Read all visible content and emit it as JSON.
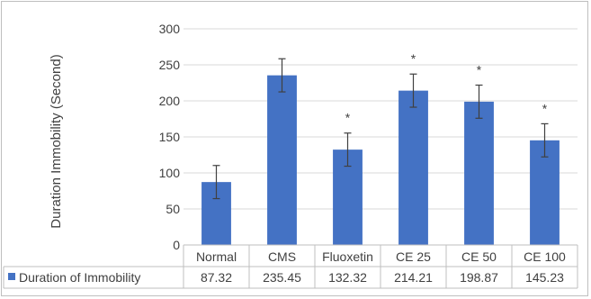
{
  "chart_data": {
    "type": "bar",
    "title": "",
    "xlabel": "",
    "ylabel": "Duration Immobility (Second)",
    "ylim": [
      0,
      300
    ],
    "yticks": [
      0,
      50,
      100,
      150,
      200,
      250,
      300
    ],
    "grid": true,
    "legend": "data-table",
    "categories": [
      "Normal",
      "CMS",
      "Fluoxetin",
      "CE 25",
      "CE 50",
      "CE 100"
    ],
    "series": [
      {
        "name": "Duration of Immobility",
        "color": "#4472c4",
        "values": [
          87.32,
          235.45,
          132.32,
          214.21,
          198.87,
          145.23
        ],
        "errors": [
          23,
          23,
          23,
          23,
          23,
          23
        ],
        "display_values": [
          "87.32",
          "235.45",
          "132.32",
          "214.21",
          "198.87",
          "145.23"
        ]
      }
    ],
    "annotations": [
      "",
      "",
      "*",
      "*",
      "*",
      "*"
    ]
  }
}
